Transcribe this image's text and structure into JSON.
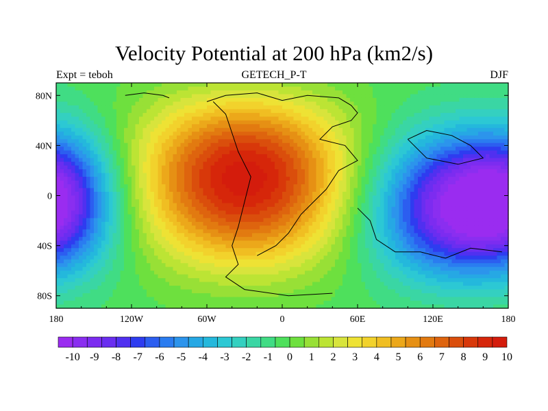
{
  "chart_data": {
    "type": "heatmap",
    "title": "Velocity Potential at 200 hPa (km2/s)",
    "left_label": "Expt = teboh",
    "center_label": "GETECH_P-T",
    "right_label": "DJF",
    "x_axis": {
      "range": [
        -180,
        180
      ],
      "ticks": [
        -180,
        -120,
        -60,
        0,
        60,
        120,
        180
      ],
      "tick_labels": [
        "180",
        "120W",
        "60W",
        "0",
        "60E",
        "120E",
        "180"
      ]
    },
    "y_axis": {
      "range": [
        -90,
        90
      ],
      "ticks": [
        80,
        40,
        0,
        -40,
        -80
      ],
      "tick_labels": [
        "80N",
        "40N",
        "0",
        "40S",
        "80S"
      ]
    },
    "field_centers": [
      {
        "lon": -30,
        "lat": 15,
        "value": 10.5,
        "type": "maximum"
      },
      {
        "lon": 140,
        "lat": -10,
        "value": -10,
        "type": "minimum"
      },
      {
        "lon": -175,
        "lat": 0,
        "value": -9.5,
        "type": "minimum"
      }
    ],
    "colorbar": {
      "levels": [
        -10,
        -9,
        -8,
        -7,
        -6,
        -5,
        -4,
        -3,
        -2,
        -1,
        0,
        1,
        2,
        3,
        4,
        5,
        6,
        7,
        8,
        9,
        10
      ],
      "tick_labels": [
        "-10",
        "-9",
        "-8",
        "-7",
        "-6",
        "-5",
        "-4",
        "-3",
        "-2",
        "-1",
        "0",
        "1",
        "2",
        "3",
        "4",
        "5",
        "6",
        "7",
        "8",
        "9",
        "10"
      ],
      "colors": [
        "#9a2cf0",
        "#8a2ef0",
        "#7c2cf0",
        "#6a2ef0",
        "#5030f0",
        "#2e3cf0",
        "#2c5ef0",
        "#2a7cf0",
        "#2c94ec",
        "#26a8e4",
        "#24b8dc",
        "#2cc8d4",
        "#34d0c0",
        "#3ad6a4",
        "#40dc84",
        "#4ee05c",
        "#6ee03e",
        "#98e036",
        "#bce434",
        "#d8e43c",
        "#eee234",
        "#f2d22c",
        "#f0be22",
        "#eca81a",
        "#e69014",
        "#e27a10",
        "#de640e",
        "#da4e0c",
        "#d8380a",
        "#d6260a",
        "#d41c0c"
      ]
    }
  }
}
